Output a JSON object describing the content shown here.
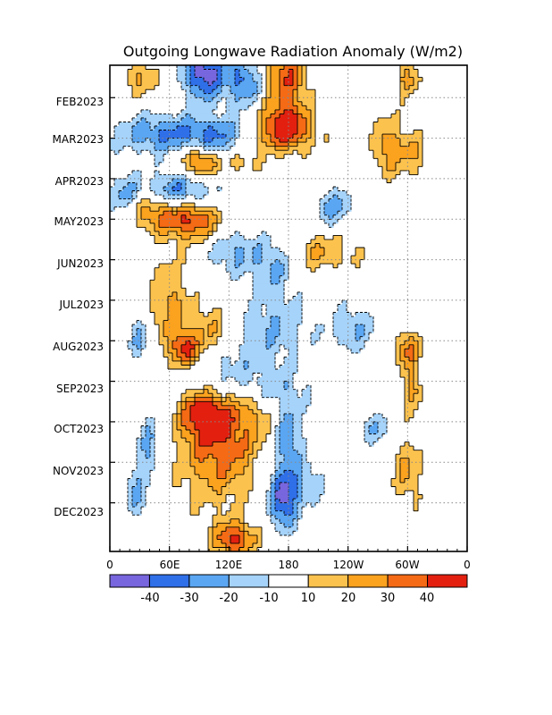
{
  "chart_data": {
    "type": "heatmap",
    "title": "Outgoing Longwave Radiation Anomaly (W/m2)",
    "xlabel": "",
    "ylabel": "",
    "x_ticks": [
      "0",
      "60E",
      "120E",
      "180",
      "120W",
      "60W",
      "0"
    ],
    "y_ticks": [
      "FEB2023",
      "MAR2023",
      "APR2023",
      "MAY2023",
      "JUN2023",
      "JUL2023",
      "AUG2023",
      "SEP2023",
      "OCT2023",
      "NOV2023",
      "DEC2023"
    ],
    "x_range_deg": [
      0,
      360
    ],
    "months_span": 12,
    "grid": true,
    "contour_levels": [
      -40,
      -30,
      -20,
      -10,
      10,
      20,
      30,
      40
    ],
    "colorbar": {
      "labels": [
        "-40",
        "-30",
        "-20",
        "-10",
        "10",
        "20",
        "30",
        "40"
      ],
      "colors": [
        "#7766dd",
        "#2f6fe8",
        "#5aa6f2",
        "#a6d3fa",
        "#ffffff",
        "#fcc24e",
        "#fba21e",
        "#f56a14",
        "#e3200f"
      ]
    },
    "anomalies": [
      {
        "lon": 95,
        "month": 0.2,
        "sx": 15,
        "sy": 0.45,
        "value": -48
      },
      {
        "lon": 135,
        "month": 0.4,
        "sx": 12,
        "sy": 0.45,
        "value": -32
      },
      {
        "lon": 178,
        "month": 0.3,
        "sx": 14,
        "sy": 0.9,
        "value": 38
      },
      {
        "lon": 30,
        "month": 0.3,
        "sx": 12,
        "sy": 0.3,
        "value": 22
      },
      {
        "lon": 175,
        "month": 1.6,
        "sx": 22,
        "sy": 0.35,
        "value": 42
      },
      {
        "lon": 55,
        "month": 1.7,
        "sx": 40,
        "sy": 0.35,
        "value": -28
      },
      {
        "lon": 110,
        "month": 1.9,
        "sx": 25,
        "sy": 0.4,
        "value": -26
      },
      {
        "lon": 90,
        "month": 2.35,
        "sx": 15,
        "sy": 0.3,
        "value": 44
      },
      {
        "lon": 130,
        "month": 2.3,
        "sx": 15,
        "sy": 0.3,
        "value": 22
      },
      {
        "lon": 70,
        "month": 3.1,
        "sx": 25,
        "sy": 0.35,
        "value": -32
      },
      {
        "lon": 15,
        "month": 3.2,
        "sx": 10,
        "sy": 0.4,
        "value": -22
      },
      {
        "lon": 80,
        "month": 3.8,
        "sx": 22,
        "sy": 0.35,
        "value": 44
      },
      {
        "lon": 40,
        "month": 3.6,
        "sx": 15,
        "sy": 0.3,
        "value": 25
      },
      {
        "lon": 225,
        "month": 3.5,
        "sx": 14,
        "sy": 0.35,
        "value": -24
      },
      {
        "lon": 280,
        "month": 2.0,
        "sx": 10,
        "sy": 0.5,
        "value": 28
      },
      {
        "lon": 305,
        "month": 2.2,
        "sx": 10,
        "sy": 0.4,
        "value": 20
      },
      {
        "lon": 300,
        "month": 0.3,
        "sx": 8,
        "sy": 0.35,
        "value": 25
      },
      {
        "lon": 165,
        "month": 4.9,
        "sx": 14,
        "sy": 0.45,
        "value": -22
      },
      {
        "lon": 125,
        "month": 4.6,
        "sx": 18,
        "sy": 0.4,
        "value": -22
      },
      {
        "lon": 215,
        "month": 4.6,
        "sx": 25,
        "sy": 0.35,
        "value": 20
      },
      {
        "lon": 60,
        "month": 5.9,
        "sx": 14,
        "sy": 0.8,
        "value": 24
      },
      {
        "lon": 75,
        "month": 7.0,
        "sx": 10,
        "sy": 0.3,
        "value": 42
      },
      {
        "lon": 100,
        "month": 6.6,
        "sx": 14,
        "sy": 0.5,
        "value": 25
      },
      {
        "lon": 30,
        "month": 6.8,
        "sx": 8,
        "sy": 0.4,
        "value": -20
      },
      {
        "lon": 120,
        "month": 7.5,
        "sx": 30,
        "sy": 0.7,
        "value": -22
      },
      {
        "lon": 170,
        "month": 6.4,
        "sx": 22,
        "sy": 0.6,
        "value": -18
      },
      {
        "lon": 245,
        "month": 6.5,
        "sx": 18,
        "sy": 0.4,
        "value": -20
      },
      {
        "lon": 300,
        "month": 7.0,
        "sx": 8,
        "sy": 0.35,
        "value": 32
      },
      {
        "lon": 305,
        "month": 8.0,
        "sx": 8,
        "sy": 0.4,
        "value": 22
      },
      {
        "lon": 95,
        "month": 8.6,
        "sx": 14,
        "sy": 0.35,
        "value": 44
      },
      {
        "lon": 110,
        "month": 9.3,
        "sx": 28,
        "sy": 1.0,
        "value": 38
      },
      {
        "lon": 140,
        "month": 8.3,
        "sx": 20,
        "sy": 0.55,
        "value": 20
      },
      {
        "lon": 155,
        "month": 8.0,
        "sx": 30,
        "sy": 0.35,
        "value": -20
      },
      {
        "lon": 180,
        "month": 9.2,
        "sx": 10,
        "sy": 0.6,
        "value": -30
      },
      {
        "lon": 175,
        "month": 10.7,
        "sx": 10,
        "sy": 0.5,
        "value": -46
      },
      {
        "lon": 270,
        "month": 9.0,
        "sx": 12,
        "sy": 0.3,
        "value": -18
      },
      {
        "lon": 40,
        "month": 9.4,
        "sx": 8,
        "sy": 0.5,
        "value": -24
      },
      {
        "lon": 25,
        "month": 10.5,
        "sx": 8,
        "sy": 0.5,
        "value": -22
      },
      {
        "lon": 125,
        "month": 11.7,
        "sx": 15,
        "sy": 0.3,
        "value": 42
      },
      {
        "lon": 300,
        "month": 10.0,
        "sx": 10,
        "sy": 0.6,
        "value": 22
      },
      {
        "lon": 200,
        "month": 10.3,
        "sx": 12,
        "sy": 0.4,
        "value": -18
      }
    ]
  }
}
